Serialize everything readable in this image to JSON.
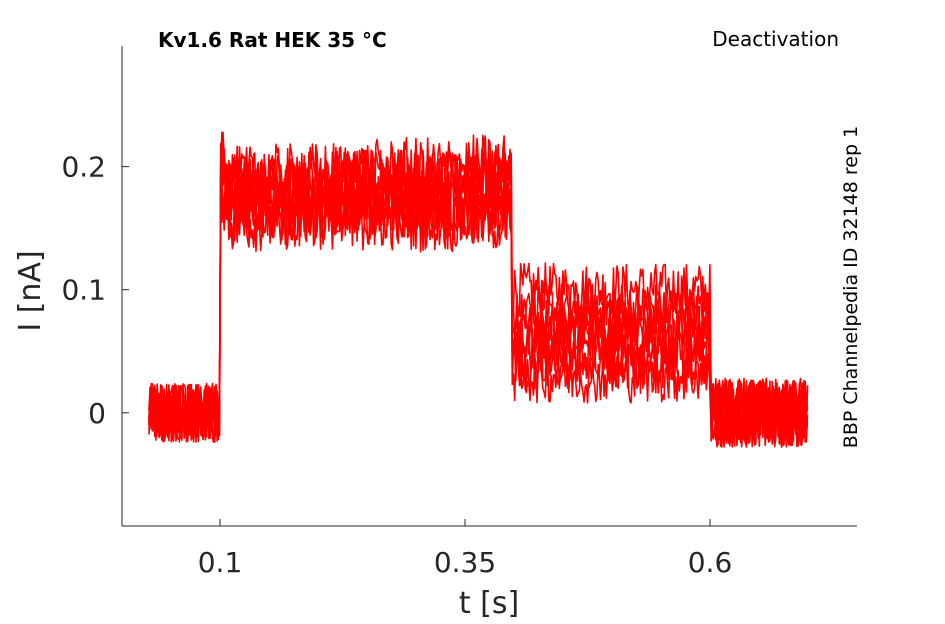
{
  "chart_data": {
    "type": "line",
    "title": "Kv1.6  Rat  HEK  35 °C",
    "subtitle": "Deactivation",
    "side_label": "BBP Channelpedia ID 32148 rep 1",
    "xlabel": "t [s]",
    "ylabel": "I [nA]",
    "xlim": [
      0.0,
      0.75
    ],
    "ylim": [
      -0.092,
      0.298
    ],
    "xticks": [
      0.1,
      0.35,
      0.6
    ],
    "xtick_labels": [
      "0.1",
      "0.35",
      "0.6"
    ],
    "yticks": [
      0,
      0.1,
      0.2
    ],
    "ytick_labels": [
      "0",
      "0.1",
      "0.2"
    ],
    "grid": false,
    "series_color": "#ff0000",
    "protocol_segments": {
      "t": [
        0.0275,
        0.1,
        0.3975,
        0.6,
        0.7
      ],
      "traces_step_current": [
        0.165,
        0.175,
        0.182,
        0.155,
        0.185,
        0.16,
        0.19,
        0.17
      ],
      "traces_tail_current": [
        0.1,
        0.085,
        0.075,
        0.065,
        0.058,
        0.05,
        0.04,
        0.03
      ],
      "baseline_current": 0.0,
      "noise_amplitude": 0.02
    }
  }
}
